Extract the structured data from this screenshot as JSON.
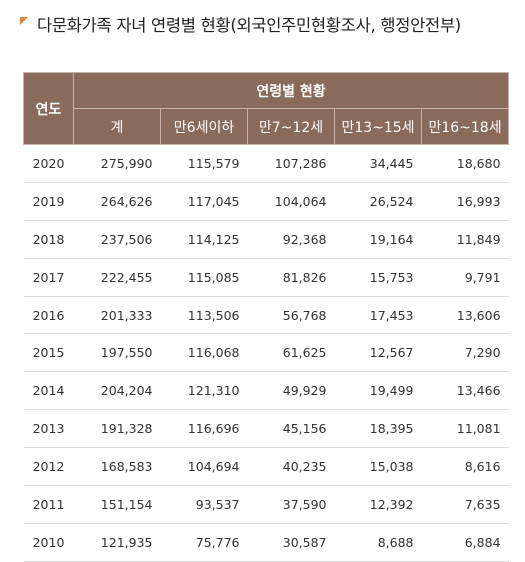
{
  "title": "다문화가족 자녀 연령별 현황(외국인주민현황조사, 행정안전부)",
  "table": {
    "year_header": "연도",
    "group_header": "연령별 현황",
    "columns": [
      "계",
      "만6세이하",
      "만7~12세",
      "만13~15세",
      "만16~18세"
    ],
    "rows": [
      {
        "year": "2020",
        "cells": [
          "275,990",
          "115,579",
          "107,286",
          "34,445",
          "18,680"
        ]
      },
      {
        "year": "2019",
        "cells": [
          "264,626",
          "117,045",
          "104,064",
          "26,524",
          "16,993"
        ]
      },
      {
        "year": "2018",
        "cells": [
          "237,506",
          "114,125",
          "92,368",
          "19,164",
          "11,849"
        ]
      },
      {
        "year": "2017",
        "cells": [
          "222,455",
          "115,085",
          "81,826",
          "15,753",
          "9,791"
        ]
      },
      {
        "year": "2016",
        "cells": [
          "201,333",
          "113,506",
          "56,768",
          "17,453",
          "13,606"
        ]
      },
      {
        "year": "2015",
        "cells": [
          "197,550",
          "116,068",
          "61,625",
          "12,567",
          "7,290"
        ]
      },
      {
        "year": "2014",
        "cells": [
          "204,204",
          "121,310",
          "49,929",
          "19,499",
          "13,466"
        ]
      },
      {
        "year": "2013",
        "cells": [
          "191,328",
          "116,696",
          "45,156",
          "18,395",
          "11,081"
        ]
      },
      {
        "year": "2012",
        "cells": [
          "168,583",
          "104,694",
          "40,235",
          "15,038",
          "8,616"
        ]
      },
      {
        "year": "2011",
        "cells": [
          "151,154",
          "93,537",
          "37,590",
          "12,392",
          "7,635"
        ]
      },
      {
        "year": "2010",
        "cells": [
          "121,935",
          "75,776",
          "30,587",
          "8,688",
          "6,884"
        ]
      }
    ]
  }
}
